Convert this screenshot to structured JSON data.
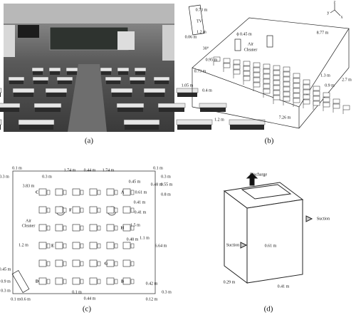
{
  "panels": {
    "a": {
      "label": "(a)"
    },
    "b": {
      "label": "(b)",
      "annotations": [
        "0.73 m",
        "TV",
        "1.2 m",
        "0.06 m",
        "ϕ 0.45 m",
        "Air",
        "Cleaner",
        "30°",
        "0.95 m",
        "0.73 m",
        "1.05 m",
        "0.4 m",
        "8.77 m",
        "1.3 m",
        "0.9 m",
        "2.7 m",
        "1.2 m",
        "7.26 m"
      ],
      "axes": [
        "x",
        "y",
        "z"
      ]
    },
    "c": {
      "label": "(c)",
      "zones": [
        "A",
        "B",
        "C",
        "D",
        "E",
        "F",
        "G",
        "H"
      ],
      "annotations": [
        "0.1 m",
        "0.3 m",
        "0.3 m",
        "1.74 m",
        "0.44 m",
        "1.74 m",
        "0.1 m",
        "0.3 m",
        "0.45 m",
        "0.61 m",
        "0.48 m",
        "0.55 m",
        "0.8 m",
        "0.41 m",
        "0.41 m",
        "3.83 m",
        "Air",
        "Cleaner",
        "1.5 m",
        "1.1 m",
        "0.48 m",
        "1.2 m",
        "6.64 m",
        "0.45 m",
        "0.9 m",
        "0.3 m",
        "0.1 m",
        "0.6 m",
        "0.1 m",
        "0.44 m",
        "0.42 m",
        "0.12 m",
        "0.3 m"
      ]
    },
    "d": {
      "label": "(d)",
      "annotations": [
        "Discharge",
        "Suction",
        "Suction",
        "0.61 m",
        "0.29 m",
        "0.41 m"
      ]
    }
  }
}
